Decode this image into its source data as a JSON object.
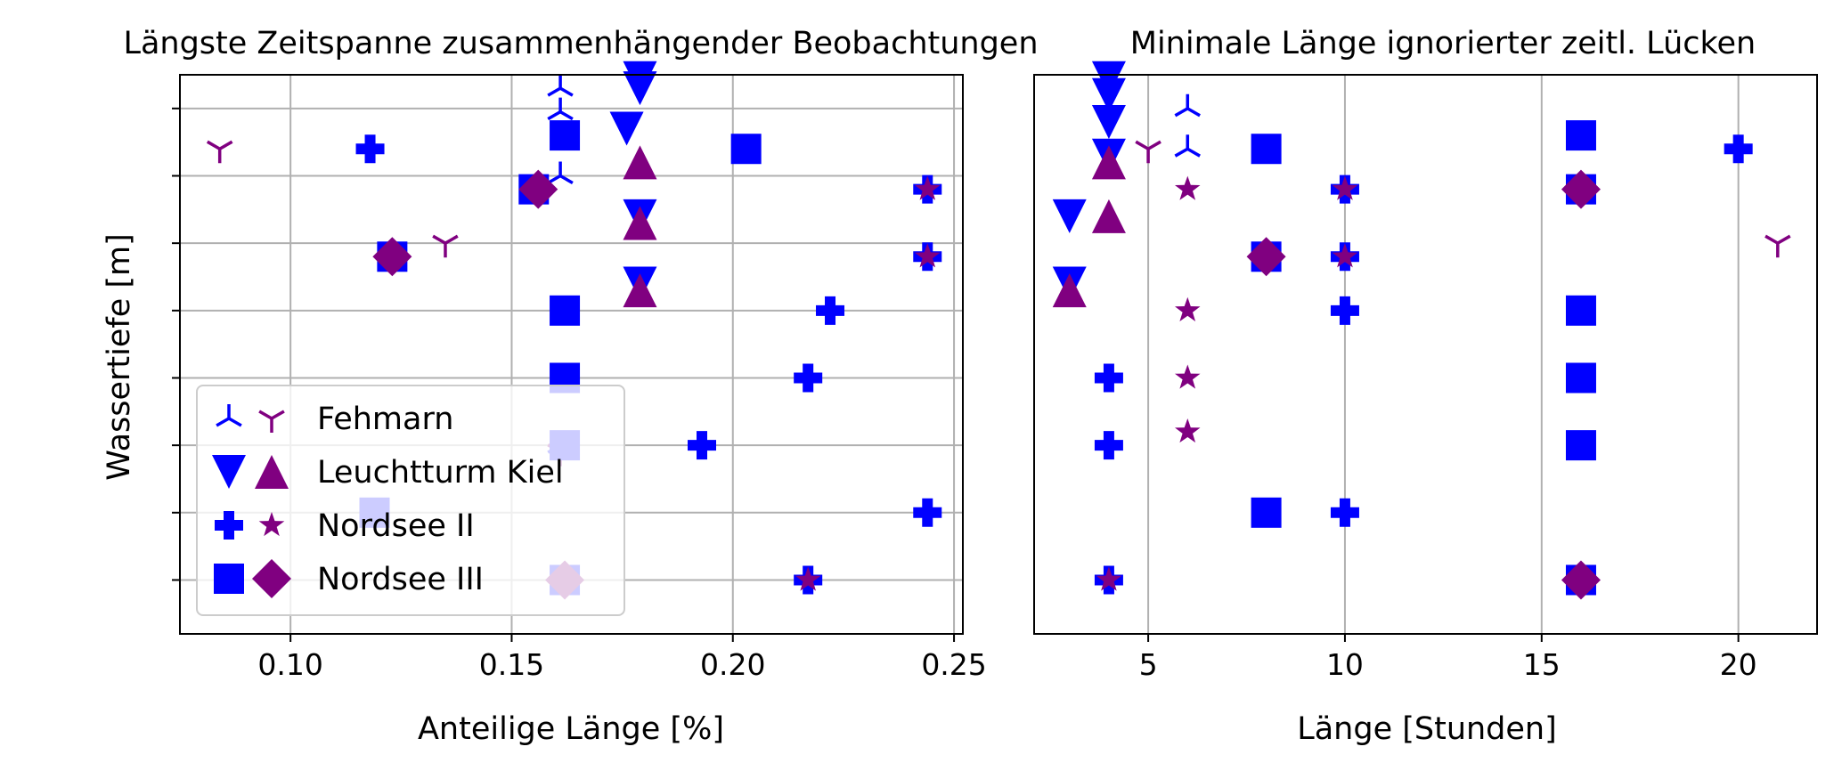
{
  "colors": {
    "blue": "#0000ff",
    "purple": "#800080"
  },
  "legend": {
    "placement": "lower-left",
    "entries": [
      {
        "label": "Fehmarn",
        "markers": [
          "tri_down",
          "tri_up"
        ]
      },
      {
        "label": "Leuchtturm Kiel",
        "markers": [
          "triangle_down",
          "triangle_up"
        ]
      },
      {
        "label": "Nordsee II",
        "markers": [
          "plus",
          "star"
        ]
      },
      {
        "label": "Nordsee III",
        "markers": [
          "square",
          "diamond"
        ]
      }
    ]
  },
  "chart_data": [
    {
      "type": "scatter",
      "title": "Längste Zeitspanne zusammenhängender Beobachtungen",
      "xlabel": "Anteilige Länge [%]",
      "ylabel": "Wassertiefe [m]",
      "xlim": [
        0.075,
        0.252
      ],
      "ylim": [
        -0.8,
        7.5
      ],
      "xticks": [
        "0.10",
        "0.15",
        "0.20",
        "0.25"
      ],
      "xtick_values": [
        0.1,
        0.15,
        0.2,
        0.25
      ],
      "ytick_values": [
        0,
        1,
        2,
        3,
        4,
        5,
        6,
        7
      ],
      "grid": true,
      "series": [
        {
          "name": "Fehmarn",
          "marker": "tri_down",
          "color": "blue",
          "points": [
            [
              0.161,
              7.3
            ],
            [
              0.161,
              6.95
            ],
            [
              0.161,
              6.0
            ],
            [
              0.161,
              2.0
            ]
          ]
        },
        {
          "name": "Fehmarn",
          "marker": "tri_up",
          "color": "purple",
          "points": [
            [
              0.084,
              6.4
            ],
            [
              0.135,
              5.0
            ],
            [
              0.161,
              1.9
            ]
          ]
        },
        {
          "name": "Leuchtturm Kiel",
          "marker": "triangle_down",
          "color": "blue",
          "points": [
            [
              0.179,
              7.45
            ],
            [
              0.179,
              7.3
            ],
            [
              0.176,
              6.7
            ],
            [
              0.179,
              5.4
            ],
            [
              0.179,
              4.4
            ]
          ]
        },
        {
          "name": "Leuchtturm Kiel",
          "marker": "triangle_up",
          "color": "purple",
          "points": [
            [
              0.179,
              6.2
            ],
            [
              0.179,
              5.3
            ],
            [
              0.179,
              4.3
            ]
          ]
        },
        {
          "name": "Nordsee II",
          "marker": "plus",
          "color": "blue",
          "points": [
            [
              0.118,
              6.4
            ],
            [
              0.156,
              5.8
            ],
            [
              0.244,
              5.8
            ],
            [
              0.123,
              4.8
            ],
            [
              0.244,
              4.8
            ],
            [
              0.222,
              4.0
            ],
            [
              0.217,
              3.0
            ],
            [
              0.193,
              2.0
            ],
            [
              0.244,
              1.0
            ],
            [
              0.217,
              0.0
            ]
          ]
        },
        {
          "name": "Nordsee II",
          "marker": "star",
          "color": "purple",
          "points": [
            [
              0.244,
              5.8
            ],
            [
              0.244,
              4.8
            ],
            [
              0.217,
              0.0
            ]
          ]
        },
        {
          "name": "Nordsee III",
          "marker": "square",
          "color": "blue",
          "points": [
            [
              0.162,
              6.6
            ],
            [
              0.203,
              6.4
            ],
            [
              0.155,
              5.8
            ],
            [
              0.123,
              4.8
            ],
            [
              0.162,
              4.0
            ],
            [
              0.162,
              3.0
            ],
            [
              0.162,
              2.0
            ],
            [
              0.119,
              1.0
            ],
            [
              0.162,
              0.0
            ]
          ]
        },
        {
          "name": "Nordsee III",
          "marker": "diamond",
          "color": "purple",
          "points": [
            [
              0.156,
              5.8
            ],
            [
              0.123,
              4.8
            ],
            [
              0.162,
              0.0
            ]
          ]
        }
      ]
    },
    {
      "type": "scatter",
      "title": "Minimale Länge ignorierter zeitl. Lücken",
      "xlabel": "Länge [Stunden]",
      "ylabel": "",
      "xlim": [
        2.1,
        22.0
      ],
      "ylim": [
        -0.8,
        7.5
      ],
      "xticks": [
        "5",
        "10",
        "15",
        "20"
      ],
      "xtick_values": [
        5,
        10,
        15,
        20
      ],
      "ytick_values": [],
      "grid": true,
      "series": [
        {
          "name": "Fehmarn",
          "marker": "tri_down",
          "color": "blue",
          "points": [
            [
              6,
              7.0
            ],
            [
              6,
              6.4
            ]
          ]
        },
        {
          "name": "Fehmarn",
          "marker": "tri_up",
          "color": "purple",
          "points": [
            [
              5,
              6.4
            ],
            [
              21,
              5.0
            ]
          ]
        },
        {
          "name": "Leuchtturm Kiel",
          "marker": "triangle_down",
          "color": "blue",
          "points": [
            [
              4,
              7.45
            ],
            [
              4,
              7.2
            ],
            [
              4,
              6.8
            ],
            [
              4,
              6.3
            ],
            [
              3,
              5.4
            ],
            [
              3,
              4.4
            ]
          ]
        },
        {
          "name": "Leuchtturm Kiel",
          "marker": "triangle_up",
          "color": "purple",
          "points": [
            [
              4,
              6.2
            ],
            [
              4,
              5.4
            ],
            [
              3,
              4.3
            ]
          ]
        },
        {
          "name": "Nordsee II",
          "marker": "plus",
          "color": "blue",
          "points": [
            [
              20,
              6.4
            ],
            [
              10,
              5.8
            ],
            [
              10,
              4.8
            ],
            [
              10,
              4.0
            ],
            [
              4,
              3.0
            ],
            [
              4,
              2.0
            ],
            [
              10,
              1.0
            ],
            [
              4,
              0.0
            ]
          ]
        },
        {
          "name": "Nordsee II",
          "marker": "star",
          "color": "purple",
          "points": [
            [
              6,
              5.8
            ],
            [
              10,
              5.8
            ],
            [
              10,
              4.8
            ],
            [
              6,
              4.0
            ],
            [
              6,
              3.0
            ],
            [
              6,
              2.2
            ],
            [
              4,
              0.0
            ]
          ]
        },
        {
          "name": "Nordsee III",
          "marker": "square",
          "color": "blue",
          "points": [
            [
              16,
              6.6
            ],
            [
              8,
              6.4
            ],
            [
              16,
              5.8
            ],
            [
              8,
              4.8
            ],
            [
              16,
              4.0
            ],
            [
              16,
              3.0
            ],
            [
              16,
              2.0
            ],
            [
              8,
              1.0
            ],
            [
              16,
              0.0
            ]
          ]
        },
        {
          "name": "Nordsee III",
          "marker": "diamond",
          "color": "purple",
          "points": [
            [
              16,
              5.8
            ],
            [
              8,
              4.8
            ],
            [
              16,
              0.0
            ]
          ]
        }
      ]
    }
  ]
}
